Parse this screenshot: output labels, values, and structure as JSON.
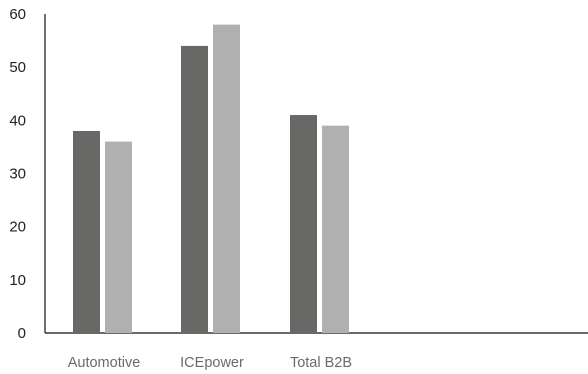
{
  "chart_data": {
    "type": "bar",
    "categories": [
      "Automotive",
      "ICEpower",
      "Total B2B"
    ],
    "series": [
      {
        "values": [
          38,
          54,
          41
        ],
        "color": "#686866"
      },
      {
        "values": [
          36,
          58,
          39
        ],
        "color": "#b0b0b0"
      }
    ],
    "ylim": [
      0,
      60
    ],
    "yticks": [
      0,
      10,
      20,
      30,
      40,
      50,
      60
    ],
    "grid": false
  }
}
